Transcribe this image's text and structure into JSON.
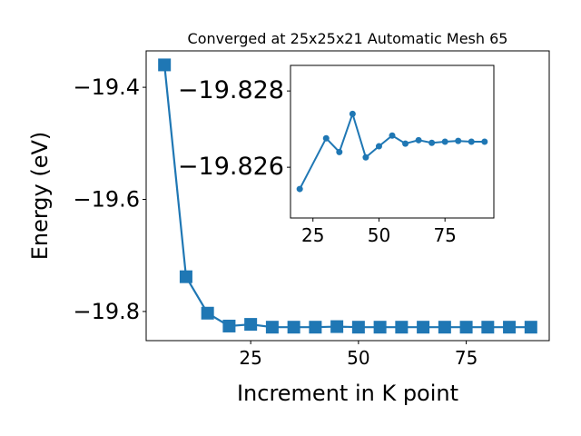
{
  "chart_data": [
    {
      "type": "line",
      "title": "Converged at 25x25x21 Automatic Mesh 65",
      "x_label": "Increment in K point",
      "y_label": "Energy (eV)",
      "x": [
        5,
        10,
        15,
        20,
        25,
        30,
        35,
        40,
        45,
        50,
        55,
        60,
        65,
        70,
        75,
        80,
        85,
        90
      ],
      "series": [
        {
          "color": "#1f77b4",
          "marker": "square",
          "values": [
            -19.36,
            -19.738,
            -19.803,
            -19.826,
            -19.823,
            -19.828,
            -19.828,
            -19.828,
            -19.827,
            -19.828,
            -19.828,
            -19.828,
            -19.828,
            -19.828,
            -19.828,
            -19.828,
            -19.828,
            -19.828
          ]
        }
      ],
      "xlim": [
        0.75,
        94.25
      ],
      "ylim": [
        -19.852,
        -19.335
      ],
      "xticks": [
        25,
        50,
        75
      ],
      "yticks": [
        {
          "value": -19.4,
          "label": "−19.4"
        },
        {
          "value": -19.6,
          "label": "−19.6"
        },
        {
          "value": -19.8,
          "label": "−19.8"
        }
      ]
    },
    {
      "type": "line",
      "x": [
        20,
        30,
        35,
        40,
        45,
        50,
        55,
        60,
        65,
        70,
        75,
        80,
        85,
        90
      ],
      "series": [
        {
          "color": "#1f77b4",
          "marker": "circle",
          "values": [
            -19.82543,
            -19.82676,
            -19.8264,
            -19.8274,
            -19.82626,
            -19.82655,
            -19.82683,
            -19.82662,
            -19.82671,
            -19.82664,
            -19.82667,
            -19.82669,
            -19.82667,
            -19.82667
          ]
        }
      ],
      "xlim": [
        16.5,
        93.5
      ],
      "ylim": [
        -19.82467,
        -19.82867
      ],
      "xticks": [
        25,
        50,
        75
      ],
      "yticks": [
        {
          "value": -19.828,
          "label": "−19.828"
        },
        {
          "value": -19.826,
          "label": "−19.826"
        }
      ]
    }
  ]
}
